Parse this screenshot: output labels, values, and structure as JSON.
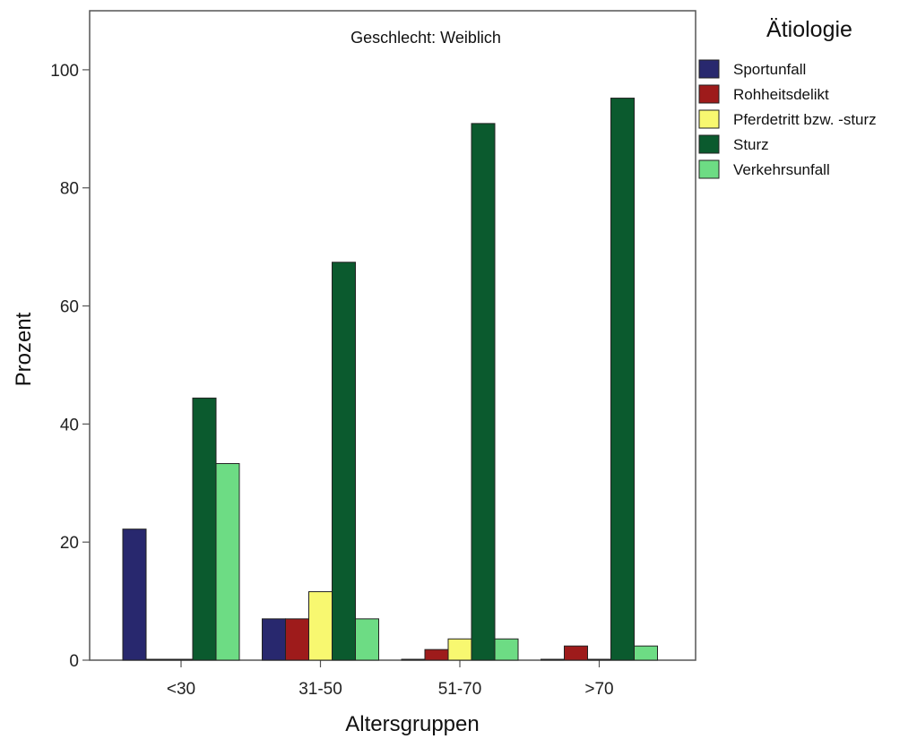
{
  "chart_data": {
    "type": "bar",
    "title": "Geschlecht: Weiblich",
    "xlabel": "Altersgruppen",
    "ylabel": "Prozent",
    "ylim": [
      0,
      110
    ],
    "yticks": [
      0,
      20,
      40,
      60,
      80,
      100
    ],
    "categories": [
      "<30",
      "31-50",
      "51-70",
      ">70"
    ],
    "legend_title": "Ätiologie",
    "legend_position": "right",
    "grid": false,
    "series": [
      {
        "name": "Sportunfall",
        "color": "#28286e",
        "values": [
          22.2,
          7.0,
          0,
          0
        ]
      },
      {
        "name": "Rohheitsdelikt",
        "color": "#9e1b1b",
        "values": [
          0,
          7.0,
          1.8,
          2.4
        ]
      },
      {
        "name": "Pferdetritt bzw. -sturz",
        "color": "#f8f870",
        "values": [
          0,
          11.6,
          3.6,
          0
        ]
      },
      {
        "name": "Sturz",
        "color": "#0b5a2e",
        "values": [
          44.4,
          67.4,
          90.9,
          95.2
        ]
      },
      {
        "name": "Verkehrsunfall",
        "color": "#6ddc84",
        "values": [
          33.3,
          7.0,
          3.6,
          2.4
        ]
      }
    ]
  }
}
